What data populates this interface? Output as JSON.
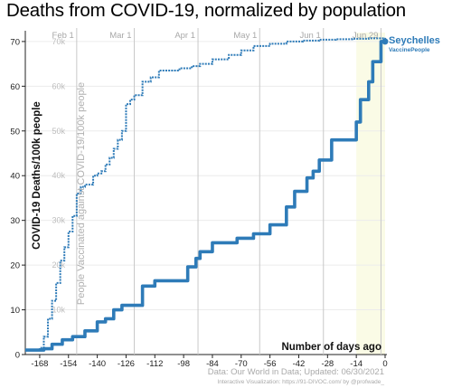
{
  "title": "Deaths from COVID-19, normalized by population",
  "chart_data": {
    "type": "line",
    "title": "Deaths from COVID-19, normalized by population",
    "xlabel": "Number of days ago",
    "ylabel": "COVID-19 Deaths/100k people",
    "ylabel_right": "People Vaccinated against COVID-19/100k people",
    "xlim": [
      -175,
      0
    ],
    "ylim": [
      0,
      72
    ],
    "ylim_vaccine": [
      0,
      72000
    ],
    "x_ticks": [
      -168,
      -154,
      -140,
      -126,
      -112,
      -98,
      -84,
      -70,
      -56,
      -42,
      -28,
      -14,
      0
    ],
    "y_ticks": [
      0,
      10,
      20,
      30,
      40,
      50,
      60,
      70
    ],
    "vaccine_ticks": [
      {
        "value": 10000,
        "label": "10k"
      },
      {
        "value": 20000,
        "label": "20k"
      },
      {
        "value": 30000,
        "label": "30k"
      },
      {
        "value": 40000,
        "label": "40k"
      },
      {
        "value": 50000,
        "label": "50k"
      },
      {
        "value": 60000,
        "label": "60k"
      },
      {
        "value": 70000,
        "label": "70k"
      }
    ],
    "date_markers": [
      {
        "label": "Feb 1",
        "x": -150
      },
      {
        "label": "Mar 1",
        "x": -122
      },
      {
        "label": "Apr 1",
        "x": -91
      },
      {
        "label": "May 1",
        "x": -61
      },
      {
        "label": "Jun 1",
        "x": -30
      },
      {
        "label": "Jun 29",
        "x": -2
      }
    ],
    "series": [
      {
        "name": "Seychelles",
        "color": "#2e7bb8",
        "x": [
          -175,
          -170,
          -166,
          -162,
          -157,
          -152,
          -146,
          -140,
          -136,
          -132,
          -128,
          -122,
          -118,
          -112,
          -106,
          -100,
          -96,
          -92,
          -90,
          -84,
          -78,
          -72,
          -68,
          -64,
          -60,
          -56,
          -54,
          -48,
          -44,
          -40,
          -38,
          -35,
          -32,
          -28,
          -26,
          -22,
          -18,
          -14,
          -12,
          -10,
          -8,
          -6,
          -4,
          -2,
          0
        ],
        "values": [
          1.0,
          1.0,
          1.3,
          2.3,
          3.3,
          4.0,
          5.3,
          7.3,
          8.0,
          10.0,
          11.0,
          11.0,
          15.3,
          16.5,
          16.5,
          16.5,
          19.6,
          21.5,
          23.0,
          25.0,
          25.0,
          26.0,
          26.0,
          27.0,
          27.0,
          29.0,
          29.0,
          33.0,
          36.5,
          36.5,
          39.5,
          41.0,
          43.5,
          43.5,
          48.0,
          48.0,
          48.0,
          52.0,
          57.0,
          57.0,
          61.0,
          65.5,
          65.5,
          70.0,
          70.0
        ]
      },
      {
        "name": "VaccinePeople",
        "color": "#2e7bb8",
        "x": [
          -175,
          -170,
          -168,
          -166,
          -164,
          -162,
          -160,
          -158,
          -156,
          -154,
          -152,
          -150,
          -148,
          -146,
          -144,
          -142,
          -140,
          -138,
          -136,
          -134,
          -132,
          -130,
          -128,
          -126,
          -124,
          -122,
          -118,
          -114,
          -112,
          -110,
          -106,
          -100,
          -94,
          -90,
          -84,
          -76,
          -70,
          -64,
          -56,
          -48,
          -40,
          -32,
          -24,
          -16,
          -8,
          0
        ],
        "values": [
          1000,
          1000,
          1500,
          4000,
          8000,
          12000,
          16000,
          21000,
          24000,
          27500,
          31000,
          36000,
          37500,
          38000,
          38000,
          40000,
          40500,
          41000,
          42500,
          44000,
          46000,
          48000,
          50000,
          56000,
          57000,
          58000,
          61000,
          62000,
          62000,
          63500,
          63500,
          64000,
          64500,
          65000,
          66000,
          67000,
          68000,
          69000,
          69500,
          70000,
          70200,
          70400,
          70500,
          70600,
          70700,
          70800
        ]
      }
    ],
    "legend": {
      "primary": "Seychelles",
      "secondary": "VaccinePeople",
      "placement": "end of lines"
    },
    "source": "Data: Our World in Data; Updated: 06/30/2021",
    "credit": "Interactive Visualization: https://91-DIVOC.com/ by @profwade_"
  }
}
